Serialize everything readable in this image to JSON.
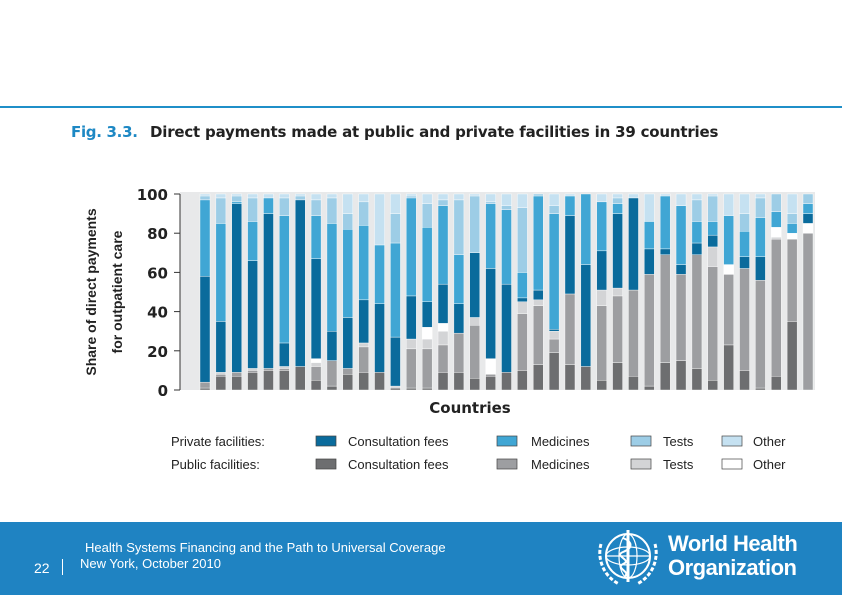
{
  "figure": {
    "label": "Fig. 3.3.",
    "title": "Direct payments made at public and private facilities in 39 countries"
  },
  "chart_data": {
    "type": "stacked-bar",
    "categories_count": 39,
    "xlabel": "Countries",
    "ylabel_line1": "Share of direct payments",
    "ylabel_line2": "for outpatient care",
    "ylim": [
      0,
      100
    ],
    "yticks": [
      "0",
      "20",
      "40",
      "60",
      "80",
      "100"
    ],
    "series": [
      {
        "name": "Public Consultation fees",
        "color": "#6d6e70",
        "values": [
          1,
          7,
          7,
          9,
          10,
          10,
          12,
          5,
          2,
          8,
          9,
          9,
          1,
          1,
          1,
          9,
          9,
          6,
          7,
          9,
          10,
          13,
          19,
          13,
          12,
          5,
          14,
          7,
          2,
          14,
          15,
          11,
          5,
          23,
          10,
          1,
          7,
          35,
          0
        ]
      },
      {
        "name": "Public Medicines",
        "color": "#9d9ea1",
        "values": [
          3,
          1,
          2,
          1,
          1,
          1,
          0,
          7,
          13,
          3,
          13,
          0,
          0,
          20,
          20,
          14,
          20,
          27,
          1,
          0,
          29,
          30,
          7,
          36,
          0,
          38,
          34,
          44,
          57,
          55,
          44,
          58,
          58,
          36,
          52,
          55,
          70,
          42,
          80
        ]
      },
      {
        "name": "Public Tests",
        "color": "#d3d4d6",
        "values": [
          0,
          1,
          0,
          1,
          0,
          1,
          0,
          2,
          0,
          0,
          2,
          0,
          1,
          5,
          5,
          7,
          0,
          4,
          0,
          0,
          6,
          3,
          4,
          0,
          0,
          8,
          4,
          0,
          0,
          0,
          0,
          0,
          10,
          0,
          0,
          0,
          1,
          0,
          0
        ]
      },
      {
        "name": "Public Other",
        "color": "#ffffff",
        "values": [
          0,
          0,
          0,
          0,
          0,
          0,
          0,
          2,
          0,
          0,
          0,
          0,
          0,
          0,
          6,
          4,
          0,
          0,
          8,
          0,
          0,
          0,
          0,
          0,
          0,
          0,
          0,
          0,
          0,
          0,
          0,
          0,
          0,
          5,
          0,
          0,
          5,
          3,
          5
        ]
      },
      {
        "name": "Private Consultation fees",
        "color": "#0a6b9c",
        "values": [
          54,
          26,
          86,
          55,
          79,
          12,
          85,
          51,
          15,
          26,
          22,
          35,
          25,
          22,
          13,
          20,
          15,
          33,
          46,
          45,
          2,
          5,
          1,
          40,
          52,
          20,
          38,
          47,
          13,
          3,
          5,
          6,
          6,
          0,
          6,
          12,
          0,
          0,
          5
        ]
      },
      {
        "name": "Private Medicines",
        "color": "#40a6d4",
        "values": [
          39,
          50,
          1,
          20,
          8,
          65,
          0,
          22,
          55,
          45,
          38,
          30,
          48,
          50,
          38,
          40,
          25,
          0,
          33,
          38,
          13,
          48,
          59,
          10,
          36,
          25,
          5,
          0,
          14,
          27,
          30,
          11,
          7,
          25,
          13,
          20,
          8,
          5,
          5
        ]
      },
      {
        "name": "Private Tests",
        "color": "#9dcde6",
        "values": [
          2,
          13,
          3,
          12,
          0,
          9,
          2,
          8,
          13,
          8,
          12,
          0,
          15,
          1,
          12,
          3,
          28,
          29,
          1,
          2,
          33,
          1,
          4,
          0,
          0,
          0,
          3,
          0,
          0,
          0,
          0,
          11,
          13,
          0,
          9,
          10,
          9,
          5,
          5
        ]
      },
      {
        "name": "Private Other",
        "color": "#c5e1f1",
        "values": [
          1,
          2,
          1,
          2,
          2,
          2,
          1,
          3,
          2,
          10,
          4,
          26,
          10,
          1,
          5,
          3,
          3,
          1,
          4,
          6,
          7,
          0,
          6,
          1,
          0,
          4,
          2,
          2,
          14,
          1,
          6,
          3,
          1,
          11,
          10,
          2,
          0,
          10,
          0
        ]
      }
    ],
    "legend": {
      "rows": [
        {
          "label": "Private facilities:",
          "items": [
            {
              "text": "Consultation fees",
              "color": "#0a6b9c"
            },
            {
              "text": "Medicines",
              "color": "#40a6d4"
            },
            {
              "text": "Tests",
              "color": "#9dcde6"
            },
            {
              "text": "Other",
              "color": "#c5e1f1"
            }
          ]
        },
        {
          "label": "Public facilities:",
          "items": [
            {
              "text": "Consultation fees",
              "color": "#6d6e70"
            },
            {
              "text": "Medicines",
              "color": "#9d9ea1"
            },
            {
              "text": "Tests",
              "color": "#d3d4d6"
            },
            {
              "text": "Other",
              "color": "#ffffff"
            }
          ]
        }
      ]
    }
  },
  "footer": {
    "line1": "Health Systems Financing and the Path to Universal Coverage",
    "line2": "New York, October 2010",
    "page_number": "22",
    "org_name_line1": "World Health",
    "org_name_line2": "Organization"
  },
  "colors": {
    "accent": "#1f83c2",
    "label_blue": "#1d88c4"
  }
}
